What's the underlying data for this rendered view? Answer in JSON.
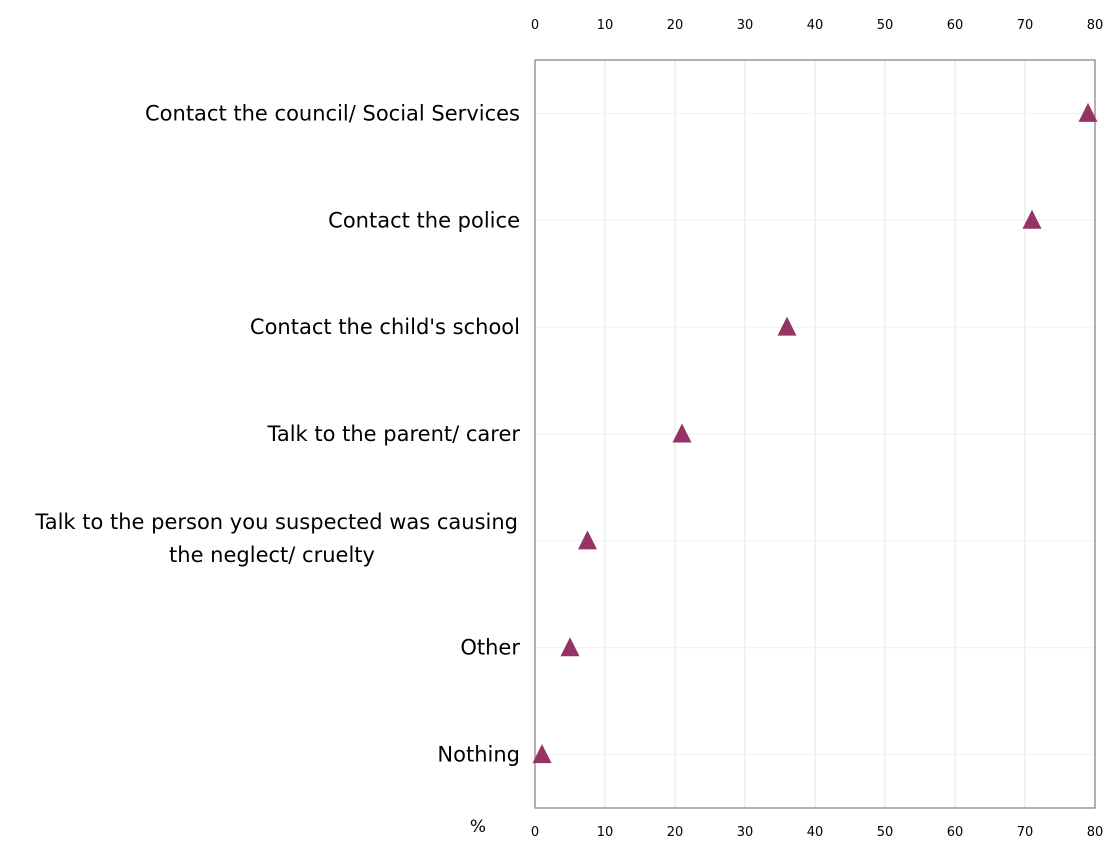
{
  "chart_data": {
    "type": "scatter",
    "orientation": "horizontal",
    "categories": [
      [
        "Contact the council/ Social Services"
      ],
      [
        "Contact the police"
      ],
      [
        "Contact the child's school"
      ],
      [
        "Talk to the parent/ carer"
      ],
      [
        "Talk to the person you suspected was causing",
        "the neglect/ cruelty"
      ],
      [
        "Other"
      ],
      [
        "Nothing"
      ]
    ],
    "values": [
      79,
      71,
      36,
      21,
      7.5,
      5,
      1
    ],
    "xlim": [
      0,
      80
    ],
    "xticks": [
      "0",
      "10",
      "20",
      "30",
      "40",
      "50",
      "60",
      "70",
      "80"
    ],
    "x_axis_top": true,
    "x_axis_bottom": true,
    "xlabel": "%",
    "grid": true,
    "marker": "triangle",
    "marker_color": "#963264",
    "grid_color": "#e6e6e6",
    "axis_color": "#7f7f7f"
  }
}
